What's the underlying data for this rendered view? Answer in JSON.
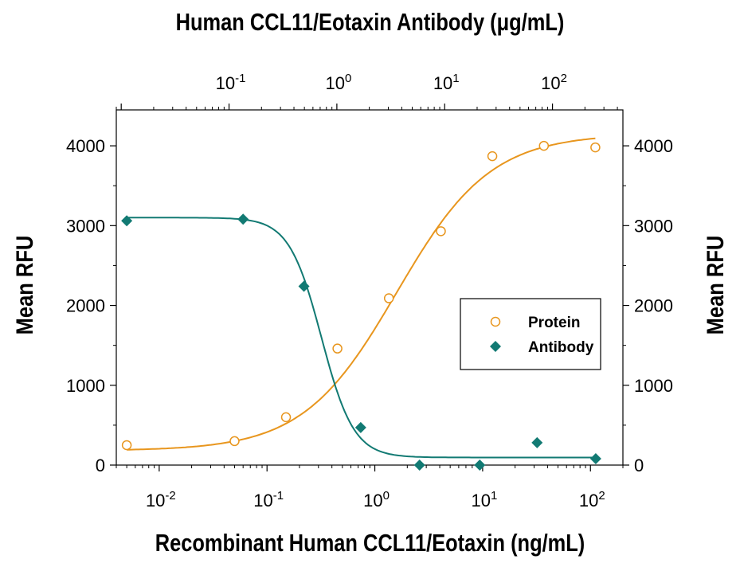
{
  "chart_data": {
    "type": "scatter",
    "title_top": "Human CCL11/Eotaxin Antibody (μg/mL)",
    "xlabel": "Recombinant Human CCL11/Eotaxin (ng/mL)",
    "ylabel_left": "Mean RFU",
    "ylabel_right": "Mean RFU",
    "x_scale": "log",
    "xlim": [
      0.004,
      200
    ],
    "ylim": [
      0,
      4450
    ],
    "y_ticks": [
      0,
      1000,
      2000,
      3000,
      4000
    ],
    "x_ticks": [
      {
        "value": 0.01,
        "base": "10",
        "exp": "-2"
      },
      {
        "value": 0.1,
        "base": "10",
        "exp": "-1"
      },
      {
        "value": 1,
        "base": "10",
        "exp": "0"
      },
      {
        "value": 10,
        "base": "10",
        "exp": "1"
      },
      {
        "value": 100,
        "base": "10",
        "exp": "2"
      }
    ],
    "top_x_scale": "log",
    "top_xlim": [
      0.009,
      450
    ],
    "top_x_ticks": [
      {
        "value": 0.1,
        "base": "10",
        "exp": "-1"
      },
      {
        "value": 1,
        "base": "10",
        "exp": "0"
      },
      {
        "value": 10,
        "base": "10",
        "exp": "1"
      },
      {
        "value": 100,
        "base": "10",
        "exp": "2"
      }
    ],
    "grid": false,
    "legend_position": "center-right",
    "series": [
      {
        "name": "Protein",
        "marker": "open-circle",
        "color": "#e8961e",
        "x": [
          0.005,
          0.05,
          0.15,
          0.45,
          1.35,
          4.1,
          12.3,
          37,
          111
        ],
        "y": [
          250,
          300,
          600,
          1460,
          2090,
          2930,
          3870,
          4000,
          3980
        ],
        "fit": {
          "model": "4PL-increasing",
          "bottom": 180,
          "top": 4150,
          "ec50": 1.6,
          "hill": 1.0
        }
      },
      {
        "name": "Antibody",
        "marker": "filled-diamond",
        "color": "#127a73",
        "x": [
          0.005,
          0.06,
          0.22,
          0.74,
          2.6,
          9.4,
          32,
          112
        ],
        "y": [
          3060,
          3080,
          2240,
          470,
          0,
          0,
          280,
          80
        ],
        "fit": {
          "model": "4PL-decreasing",
          "bottom": 95,
          "top": 3100,
          "ec50": 0.32,
          "hill": 2.9
        }
      }
    ]
  }
}
